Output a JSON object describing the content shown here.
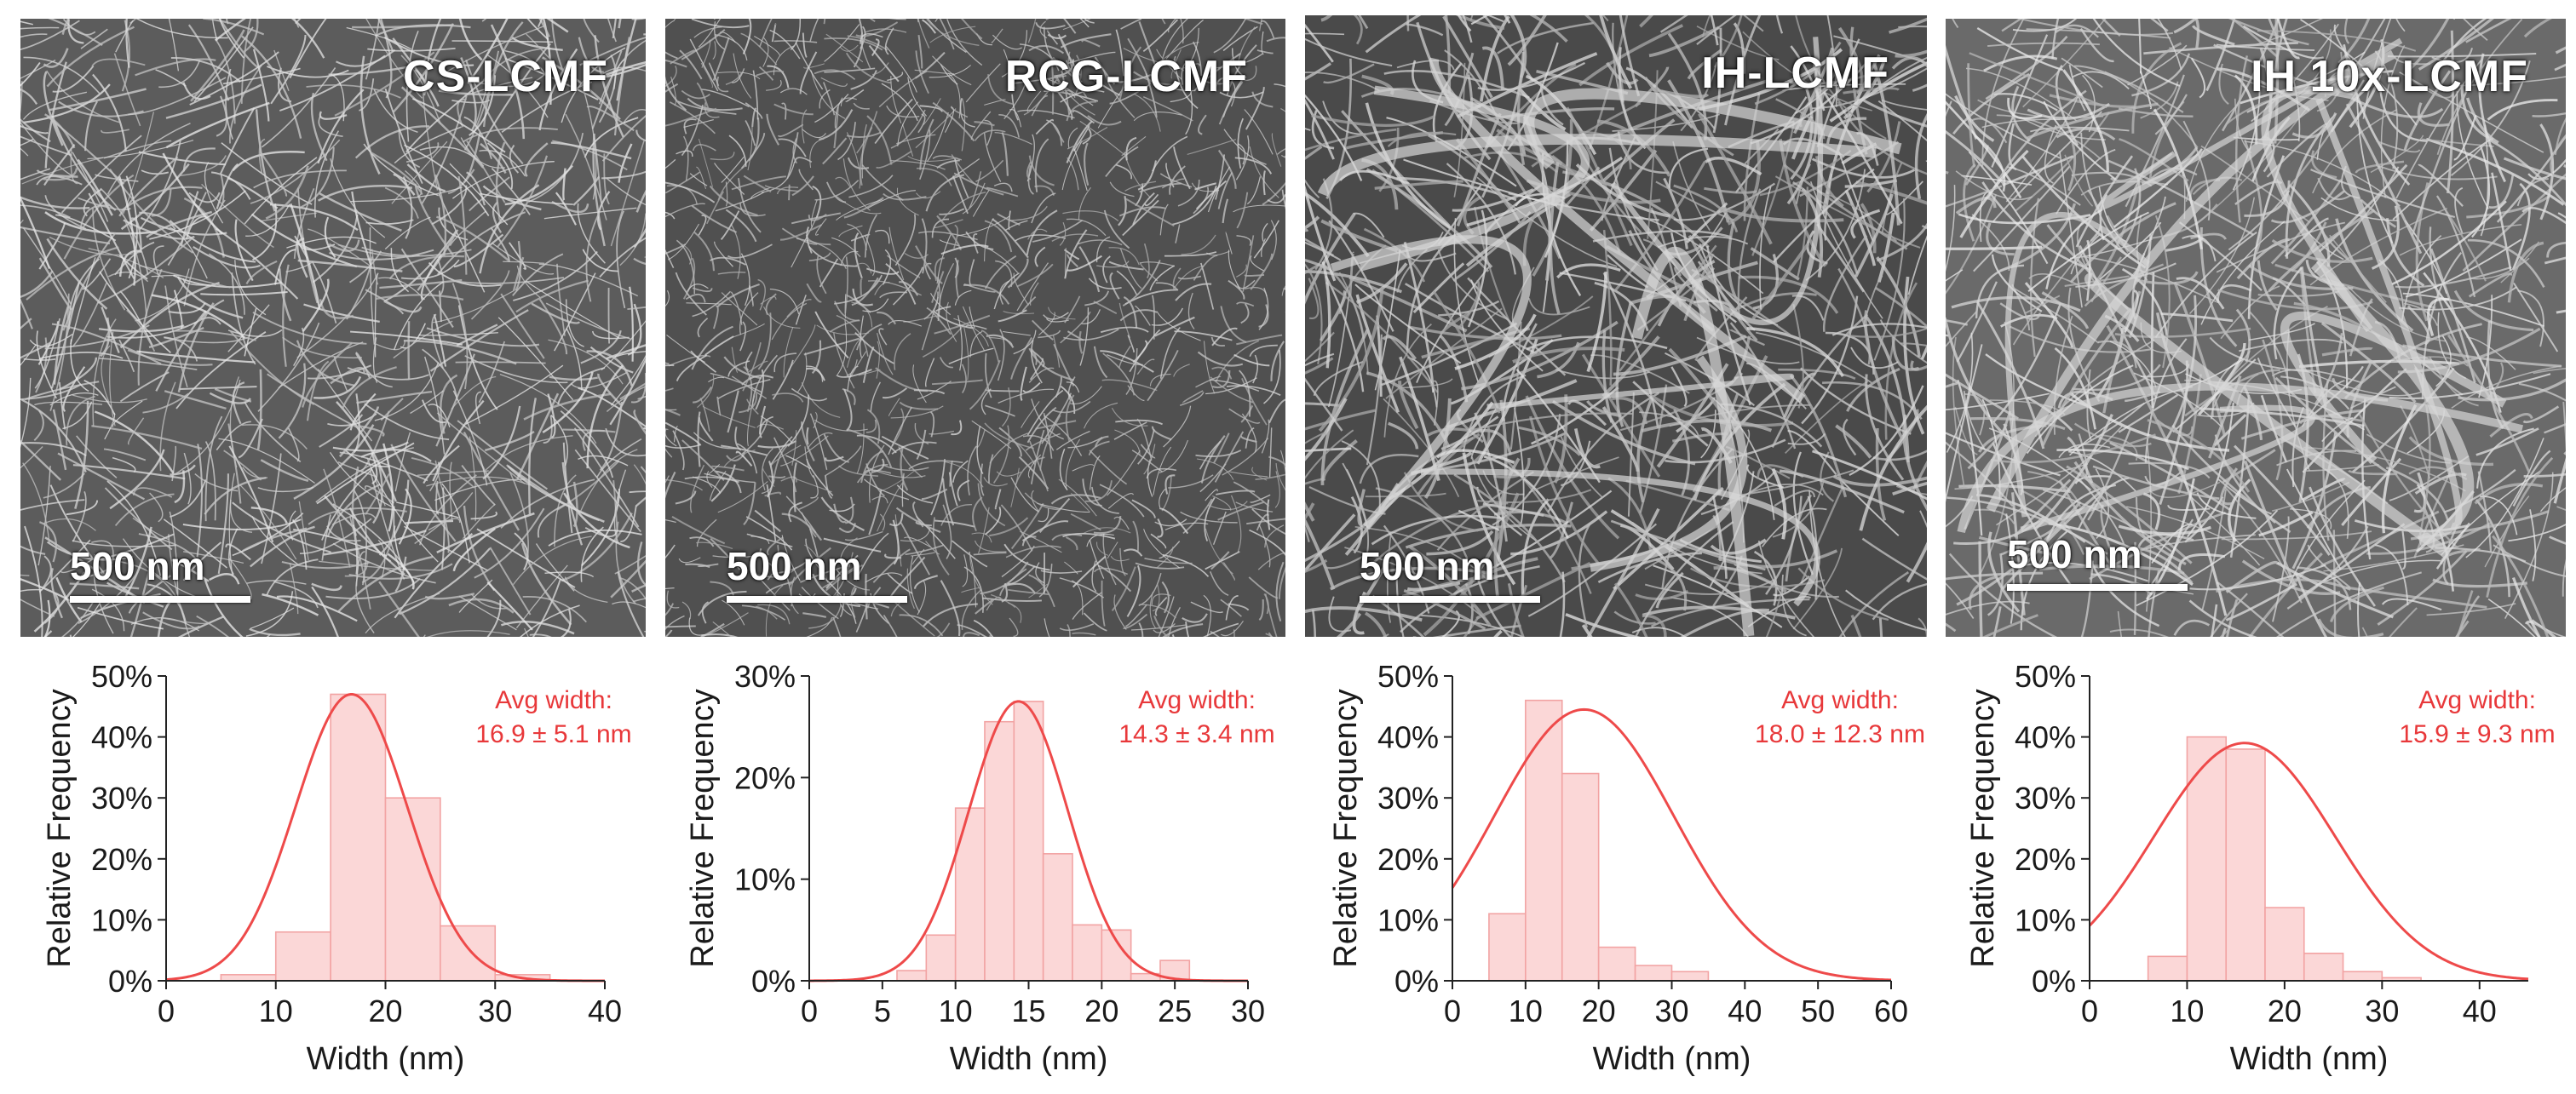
{
  "figure": {
    "panels": [
      {
        "id": "cs",
        "label": "CS-LCMF",
        "scale_bar": "500 nm",
        "texture": "fine",
        "seed": 11
      },
      {
        "id": "rcg",
        "label": "RCG-LCMF",
        "scale_bar": "500 nm",
        "texture": "dense",
        "seed": 23
      },
      {
        "id": "ih",
        "label": "IH-LCMF",
        "scale_bar": "500 nm",
        "texture": "coarse",
        "seed": 37
      },
      {
        "id": "ih10x",
        "label": "IH 10x-LCMF",
        "scale_bar": "500 nm",
        "texture": "coarse-light",
        "seed": 53
      }
    ]
  },
  "colors": {
    "bar_fill": "#fbd7d7",
    "bar_stroke": "#f2a3a3",
    "curve": "#ee4a4a",
    "annotation": "#e8383a",
    "axis": "#222222",
    "text": "#1a1a1a"
  },
  "chart_data": [
    {
      "type": "bar",
      "panel": "CS-LCMF",
      "xlabel": "Width (nm)",
      "ylabel": "Relative Frequency",
      "xlim": [
        0,
        40
      ],
      "ylim": [
        0,
        50
      ],
      "xticks": [
        0,
        10,
        20,
        30,
        40
      ],
      "xtick_labels": [
        "0",
        "10",
        "20",
        "30",
        "40"
      ],
      "yticks": [
        0,
        10,
        20,
        30,
        40,
        50
      ],
      "ytick_labels": [
        "0%",
        "10%",
        "20%",
        "30%",
        "40%",
        "50%"
      ],
      "bins": [
        [
          5,
          10,
          1
        ],
        [
          10,
          15,
          8
        ],
        [
          15,
          20,
          47
        ],
        [
          20,
          25,
          30
        ],
        [
          25,
          30,
          9
        ],
        [
          30,
          35,
          1
        ]
      ],
      "fit": {
        "mean": 16.9,
        "sd": 5.1,
        "peak": 47
      },
      "annotation": [
        "Avg width:",
        "16.9 ± 5.1 nm"
      ],
      "grid": false
    },
    {
      "type": "bar",
      "panel": "RCG-LCMF",
      "xlabel": "Width (nm)",
      "ylabel": "Relative Frequency",
      "xlim": [
        0,
        30
      ],
      "ylim": [
        0,
        30
      ],
      "xticks": [
        0,
        5,
        10,
        15,
        20,
        25,
        30
      ],
      "xtick_labels": [
        "0",
        "5",
        "10",
        "15",
        "20",
        "25",
        "30"
      ],
      "yticks": [
        0,
        10,
        20,
        30
      ],
      "ytick_labels": [
        "0%",
        "10%",
        "20%",
        "30%"
      ],
      "bins": [
        [
          6,
          8,
          1
        ],
        [
          8,
          10,
          4.5
        ],
        [
          10,
          12,
          17
        ],
        [
          12,
          14,
          25.5
        ],
        [
          14,
          16,
          27.5
        ],
        [
          16,
          18,
          12.5
        ],
        [
          18,
          20,
          5.5
        ],
        [
          20,
          22,
          5
        ],
        [
          22,
          24,
          0.7
        ],
        [
          24,
          26,
          2
        ]
      ],
      "fit": {
        "mean": 14.3,
        "sd": 3.4,
        "peak": 27.5
      },
      "annotation": [
        "Avg width:",
        "14.3 ± 3.4 nm"
      ],
      "grid": false
    },
    {
      "type": "bar",
      "panel": "IH-LCMF",
      "xlabel": "Width (nm)",
      "ylabel": "Relative Frequency",
      "xlim": [
        0,
        60
      ],
      "ylim": [
        0,
        50
      ],
      "xticks": [
        0,
        10,
        20,
        30,
        40,
        50,
        60
      ],
      "xtick_labels": [
        "0",
        "10",
        "20",
        "30",
        "40",
        "50",
        "60"
      ],
      "yticks": [
        0,
        10,
        20,
        30,
        40,
        50
      ],
      "ytick_labels": [
        "0%",
        "10%",
        "20%",
        "30%",
        "40%",
        "50%"
      ],
      "bins": [
        [
          5,
          10,
          11
        ],
        [
          10,
          15,
          46
        ],
        [
          15,
          20,
          34
        ],
        [
          20,
          25,
          5.5
        ],
        [
          25,
          30,
          2.5
        ],
        [
          30,
          35,
          1.5
        ]
      ],
      "fit": {
        "mean": 18.0,
        "sd": 12.3,
        "peak": 44.5
      },
      "annotation": [
        "Avg width:",
        "18.0 ± 12.3 nm"
      ],
      "grid": false
    },
    {
      "type": "bar",
      "panel": "IH 10x-LCMF",
      "xlabel": "Width (nm)",
      "ylabel": "Relative Frequency",
      "xlim": [
        0,
        45
      ],
      "ylim": [
        0,
        50
      ],
      "xticks": [
        0,
        10,
        20,
        30,
        40
      ],
      "xtick_labels": [
        "0",
        "10",
        "20",
        "30",
        "40"
      ],
      "yticks": [
        0,
        10,
        20,
        30,
        40,
        50
      ],
      "ytick_labels": [
        "0%",
        "10%",
        "20%",
        "30%",
        "40%",
        "50%"
      ],
      "bins": [
        [
          6,
          10,
          4
        ],
        [
          10,
          14,
          40
        ],
        [
          14,
          18,
          38
        ],
        [
          18,
          22,
          12
        ],
        [
          22,
          26,
          4.5
        ],
        [
          26,
          30,
          1.5
        ],
        [
          30,
          34,
          0.5
        ]
      ],
      "fit": {
        "mean": 15.9,
        "sd": 9.3,
        "peak": 39
      },
      "annotation": [
        "Avg width:",
        "15.9 ± 9.3 nm"
      ],
      "grid": false
    }
  ]
}
